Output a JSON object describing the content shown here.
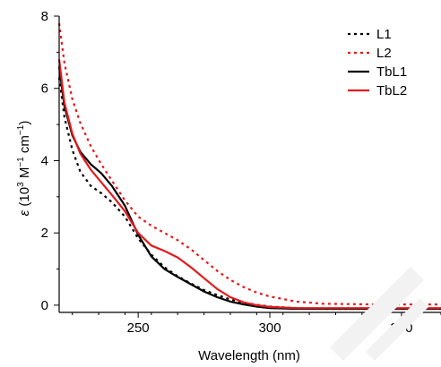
{
  "chart_data": {
    "type": "line",
    "xlabel": "Wavelength (nm)",
    "ylabel_italic": "ε",
    "ylabel_rest": " (10",
    "ylabel_sup1": "3",
    "ylabel_mid": " M",
    "ylabel_sup2": "−1",
    "ylabel_mid2": " cm",
    "ylabel_sup3": "−1",
    "ylabel_end": ")",
    "xlim": [
      220,
      365
    ],
    "ylim": [
      -0.2,
      8.0
    ],
    "xticks": [
      250,
      300,
      350
    ],
    "yticks": [
      0,
      2,
      4,
      6,
      8
    ],
    "legend_position": "top-right",
    "series": [
      {
        "name": "L1",
        "color": "#000000",
        "dash": "dotted",
        "x": [
          220,
          222,
          225,
          228,
          232,
          236,
          240,
          245,
          250,
          255,
          260,
          265,
          270,
          275,
          280,
          285,
          290,
          295,
          300,
          310,
          320,
          340,
          365
        ],
        "y": [
          6.3,
          5.2,
          4.3,
          3.7,
          3.3,
          3.1,
          2.85,
          2.45,
          1.85,
          1.4,
          1.05,
          0.8,
          0.6,
          0.42,
          0.28,
          0.16,
          0.07,
          0.01,
          -0.04,
          -0.08,
          -0.1,
          -0.1,
          -0.1
        ]
      },
      {
        "name": "L2",
        "color": "#e31a1c",
        "dash": "dotted",
        "x": [
          220,
          222,
          225,
          228,
          232,
          236,
          240,
          245,
          250,
          255,
          260,
          265,
          270,
          275,
          280,
          285,
          290,
          295,
          300,
          310,
          320,
          340,
          365
        ],
        "y": [
          7.8,
          6.7,
          5.7,
          5.05,
          4.4,
          3.9,
          3.45,
          2.9,
          2.45,
          2.2,
          2.0,
          1.8,
          1.55,
          1.25,
          0.95,
          0.7,
          0.5,
          0.35,
          0.24,
          0.1,
          0.04,
          0.02,
          0.02
        ]
      },
      {
        "name": "TbL1",
        "color": "#000000",
        "dash": "solid",
        "x": [
          220,
          222,
          225,
          228,
          232,
          236,
          240,
          245,
          250,
          255,
          260,
          265,
          270,
          275,
          280,
          285,
          290,
          295,
          300,
          310,
          320,
          340,
          365
        ],
        "y": [
          6.6,
          5.5,
          4.7,
          4.25,
          3.9,
          3.65,
          3.3,
          2.75,
          1.95,
          1.35,
          1.0,
          0.78,
          0.58,
          0.38,
          0.22,
          0.1,
          0.02,
          -0.04,
          -0.08,
          -0.1,
          -0.1,
          -0.1,
          -0.1
        ]
      },
      {
        "name": "TbL2",
        "color": "#e31a1c",
        "dash": "solid",
        "x": [
          220,
          222,
          225,
          228,
          232,
          236,
          240,
          245,
          250,
          255,
          260,
          265,
          270,
          275,
          280,
          285,
          290,
          295,
          300,
          310,
          320,
          340,
          365
        ],
        "y": [
          6.8,
          5.6,
          4.75,
          4.2,
          3.75,
          3.4,
          3.05,
          2.6,
          2.0,
          1.65,
          1.5,
          1.32,
          1.05,
          0.75,
          0.45,
          0.22,
          0.08,
          0.0,
          -0.05,
          -0.08,
          -0.08,
          -0.08,
          -0.08
        ]
      }
    ]
  }
}
